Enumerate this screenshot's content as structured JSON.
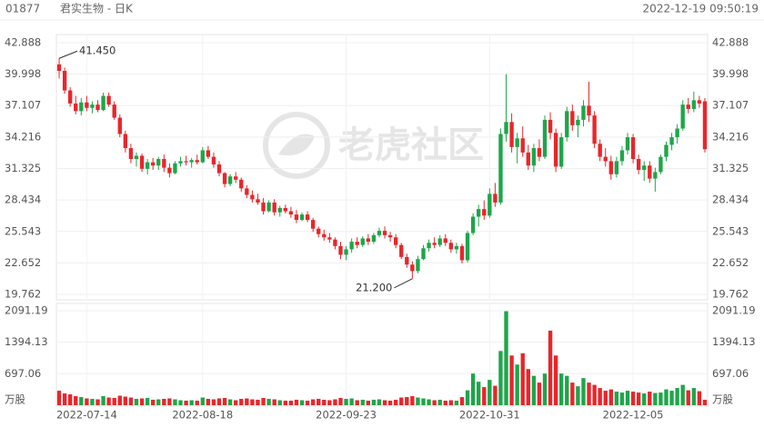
{
  "chart_data": {
    "type": "candlestick",
    "code": "01877",
    "title": "君实生物 - 日K",
    "timestamp": "2022-12-19 09:50:19",
    "watermark": "老虎社区",
    "up_color": "#1ea64a",
    "down_color": "#e8262b",
    "grid": true,
    "ylim": [
      19.762,
      42.888
    ],
    "yticks": [
      19.762,
      22.652,
      25.543,
      28.434,
      31.325,
      34.216,
      37.107,
      39.998,
      42.888
    ],
    "y2lim": [
      0,
      2091.19
    ],
    "y2ticks": [
      {
        "value": 0,
        "label": "万股"
      },
      697.06,
      1394.13,
      2091.19
    ],
    "annotations": [
      {
        "label": "41.450",
        "value": 41.45
      },
      {
        "label": "21.200",
        "value": 21.2
      }
    ],
    "categories": [
      null,
      null,
      null,
      null,
      null,
      "2022-07-14",
      null,
      null,
      null,
      null,
      null,
      null,
      null,
      null,
      null,
      null,
      null,
      null,
      null,
      null,
      null,
      null,
      null,
      null,
      null,
      null,
      "2022-08-18",
      null,
      null,
      null,
      null,
      null,
      null,
      null,
      null,
      null,
      null,
      null,
      null,
      null,
      null,
      null,
      null,
      null,
      null,
      null,
      null,
      null,
      null,
      null,
      null,
      null,
      "2022-09-23",
      null,
      null,
      null,
      null,
      null,
      null,
      null,
      null,
      null,
      null,
      null,
      null,
      null,
      null,
      null,
      null,
      null,
      null,
      null,
      null,
      null,
      null,
      null,
      null,
      null,
      "2022-10-31",
      null,
      null,
      null,
      null,
      null,
      null,
      null,
      null,
      null,
      null,
      null,
      null,
      null,
      null,
      null,
      null,
      null,
      null,
      null,
      null,
      null,
      null,
      null,
      null,
      null,
      "2022-12-05",
      null,
      null,
      null,
      null,
      null,
      null,
      null,
      null,
      null,
      null,
      null,
      null
    ],
    "candles": [
      [
        40.9,
        41.45,
        39.6,
        40.3,
        320
      ],
      [
        40.3,
        40.6,
        38.2,
        38.5,
        260
      ],
      [
        38.5,
        38.8,
        37.0,
        37.3,
        240
      ],
      [
        37.3,
        38.0,
        36.3,
        36.6,
        200
      ],
      [
        36.6,
        37.8,
        36.2,
        37.4,
        180
      ],
      [
        37.4,
        38.0,
        36.6,
        36.9,
        150
      ],
      [
        36.9,
        37.5,
        36.4,
        37.2,
        140
      ],
      [
        37.2,
        37.6,
        36.5,
        36.7,
        130
      ],
      [
        36.7,
        38.3,
        36.6,
        38.0,
        200
      ],
      [
        38.0,
        38.3,
        37.0,
        37.2,
        170
      ],
      [
        37.2,
        37.5,
        35.8,
        36.0,
        160
      ],
      [
        36.0,
        36.3,
        34.2,
        34.5,
        210
      ],
      [
        34.5,
        34.8,
        32.8,
        33.2,
        190
      ],
      [
        33.2,
        33.6,
        31.8,
        32.2,
        170
      ],
      [
        32.2,
        32.8,
        31.5,
        32.5,
        140
      ],
      [
        32.5,
        32.7,
        31.0,
        31.3,
        150
      ],
      [
        31.3,
        32.2,
        30.8,
        31.9,
        160
      ],
      [
        31.9,
        32.3,
        31.2,
        31.6,
        120
      ],
      [
        31.6,
        32.4,
        31.2,
        32.2,
        130
      ],
      [
        32.2,
        32.6,
        31.0,
        31.4,
        140
      ],
      [
        31.4,
        31.8,
        30.5,
        30.9,
        150
      ],
      [
        30.9,
        32.0,
        30.8,
        31.8,
        130
      ],
      [
        31.8,
        32.4,
        31.5,
        32.0,
        110
      ],
      [
        32.0,
        32.5,
        31.6,
        31.9,
        100
      ],
      [
        31.9,
        32.3,
        31.4,
        32.1,
        110
      ],
      [
        32.1,
        32.6,
        31.7,
        31.9,
        100
      ],
      [
        31.9,
        33.3,
        31.8,
        33.0,
        170
      ],
      [
        33.0,
        33.4,
        32.2,
        32.4,
        140
      ],
      [
        32.4,
        32.8,
        31.4,
        31.7,
        130
      ],
      [
        31.7,
        32.0,
        30.6,
        30.9,
        150
      ],
      [
        30.9,
        31.0,
        29.6,
        29.9,
        160
      ],
      [
        29.9,
        30.8,
        29.7,
        30.6,
        130
      ],
      [
        30.6,
        31.0,
        30.0,
        30.3,
        110
      ],
      [
        30.3,
        30.5,
        29.2,
        29.5,
        140
      ],
      [
        29.5,
        29.8,
        28.6,
        28.9,
        150
      ],
      [
        28.9,
        29.3,
        28.2,
        28.5,
        130
      ],
      [
        28.5,
        29.0,
        28.0,
        28.2,
        120
      ],
      [
        28.2,
        28.6,
        27.1,
        27.4,
        160
      ],
      [
        27.4,
        28.4,
        27.3,
        28.2,
        140
      ],
      [
        28.2,
        28.5,
        27.0,
        27.3,
        130
      ],
      [
        27.3,
        27.9,
        26.9,
        27.7,
        110
      ],
      [
        27.7,
        28.0,
        27.2,
        27.4,
        100
      ],
      [
        27.4,
        27.8,
        26.8,
        27.1,
        100
      ],
      [
        27.1,
        27.5,
        26.3,
        26.6,
        120
      ],
      [
        26.6,
        27.3,
        26.5,
        27.1,
        110
      ],
      [
        27.1,
        27.4,
        26.4,
        26.6,
        100
      ],
      [
        26.6,
        26.8,
        25.5,
        25.8,
        130
      ],
      [
        25.8,
        26.0,
        25.0,
        25.3,
        140
      ],
      [
        25.3,
        25.7,
        24.7,
        25.0,
        120
      ],
      [
        25.0,
        25.4,
        24.5,
        24.8,
        110
      ],
      [
        24.8,
        25.0,
        23.9,
        24.2,
        130
      ],
      [
        24.2,
        24.6,
        23.0,
        23.4,
        160
      ],
      [
        23.4,
        24.2,
        22.9,
        23.9,
        140
      ],
      [
        23.9,
        24.9,
        23.6,
        24.6,
        150
      ],
      [
        24.6,
        25.0,
        24.0,
        24.3,
        110
      ],
      [
        24.3,
        25.1,
        24.1,
        24.9,
        120
      ],
      [
        24.9,
        25.3,
        24.3,
        24.6,
        100
      ],
      [
        24.6,
        25.4,
        24.4,
        25.2,
        120
      ],
      [
        25.2,
        25.9,
        25.0,
        25.6,
        130
      ],
      [
        25.6,
        26.0,
        24.9,
        25.2,
        110
      ],
      [
        25.2,
        25.5,
        24.6,
        25.0,
        100
      ],
      [
        25.0,
        25.3,
        24.0,
        24.3,
        120
      ],
      [
        24.3,
        24.5,
        23.0,
        23.2,
        170
      ],
      [
        23.2,
        23.5,
        22.2,
        22.5,
        180
      ],
      [
        22.5,
        22.8,
        21.2,
        21.9,
        200
      ],
      [
        21.9,
        23.3,
        21.7,
        23.0,
        170
      ],
      [
        23.0,
        24.3,
        22.9,
        24.0,
        150
      ],
      [
        24.0,
        24.8,
        23.7,
        24.5,
        130
      ],
      [
        24.5,
        25.0,
        24.0,
        24.3,
        110
      ],
      [
        24.3,
        25.2,
        24.1,
        24.9,
        120
      ],
      [
        24.9,
        25.3,
        24.2,
        24.5,
        100
      ],
      [
        24.5,
        24.8,
        23.6,
        23.9,
        110
      ],
      [
        23.9,
        24.5,
        23.5,
        24.2,
        100
      ],
      [
        24.2,
        24.4,
        22.6,
        22.9,
        180
      ],
      [
        22.9,
        25.6,
        22.7,
        25.4,
        330
      ],
      [
        25.4,
        27.2,
        25.2,
        26.9,
        700
      ],
      [
        26.9,
        28.0,
        26.0,
        27.6,
        520
      ],
      [
        27.6,
        28.4,
        26.6,
        27.0,
        400
      ],
      [
        27.0,
        29.5,
        26.8,
        29.0,
        560
      ],
      [
        29.0,
        30.0,
        27.8,
        28.2,
        430
      ],
      [
        28.2,
        35.0,
        28.0,
        34.5,
        1200
      ],
      [
        34.5,
        40.0,
        33.8,
        35.6,
        2080
      ],
      [
        35.6,
        36.4,
        32.8,
        33.3,
        1100
      ],
      [
        33.3,
        34.6,
        31.8,
        34.1,
        900
      ],
      [
        34.1,
        35.2,
        32.4,
        32.8,
        1150
      ],
      [
        32.8,
        33.5,
        31.2,
        31.6,
        800
      ],
      [
        31.6,
        33.6,
        31.0,
        33.2,
        650
      ],
      [
        33.2,
        34.0,
        32.0,
        32.4,
        500
      ],
      [
        32.4,
        36.2,
        32.2,
        35.8,
        700
      ],
      [
        35.8,
        36.5,
        34.0,
        34.6,
        1650
      ],
      [
        34.6,
        35.0,
        31.0,
        31.5,
        1100
      ],
      [
        31.5,
        34.6,
        31.3,
        34.2,
        700
      ],
      [
        34.2,
        37.0,
        33.8,
        36.6,
        650
      ],
      [
        36.6,
        37.2,
        34.8,
        35.3,
        500
      ],
      [
        35.3,
        36.2,
        34.2,
        35.8,
        420
      ],
      [
        35.8,
        37.6,
        35.2,
        37.1,
        600
      ],
      [
        37.1,
        39.3,
        35.6,
        36.2,
        500
      ],
      [
        36.2,
        36.6,
        33.2,
        33.6,
        450
      ],
      [
        33.6,
        34.0,
        32.0,
        32.4,
        380
      ],
      [
        32.4,
        33.2,
        31.5,
        32.0,
        320
      ],
      [
        32.0,
        32.5,
        30.3,
        30.8,
        350
      ],
      [
        30.8,
        32.4,
        30.5,
        32.0,
        300
      ],
      [
        32.0,
        33.4,
        31.6,
        33.0,
        280
      ],
      [
        33.0,
        34.6,
        32.6,
        34.2,
        320
      ],
      [
        34.2,
        34.5,
        31.8,
        32.2,
        300
      ],
      [
        32.2,
        32.6,
        30.8,
        31.2,
        280
      ],
      [
        31.2,
        32.0,
        30.2,
        31.6,
        260
      ],
      [
        31.6,
        32.0,
        30.0,
        30.4,
        300
      ],
      [
        30.4,
        31.4,
        29.2,
        31.0,
        270
      ],
      [
        31.0,
        32.6,
        30.8,
        32.4,
        280
      ],
      [
        32.4,
        33.8,
        32.0,
        33.5,
        350
      ],
      [
        33.5,
        34.6,
        33.0,
        34.2,
        320
      ],
      [
        34.2,
        35.4,
        33.6,
        35.0,
        380
      ],
      [
        35.0,
        37.6,
        34.8,
        37.2,
        450
      ],
      [
        37.2,
        37.8,
        36.4,
        36.8,
        330
      ],
      [
        36.8,
        38.4,
        36.5,
        37.6,
        380
      ],
      [
        37.6,
        38.0,
        36.9,
        37.3,
        310
      ],
      [
        37.5,
        37.8,
        32.8,
        33.1,
        120
      ]
    ]
  }
}
